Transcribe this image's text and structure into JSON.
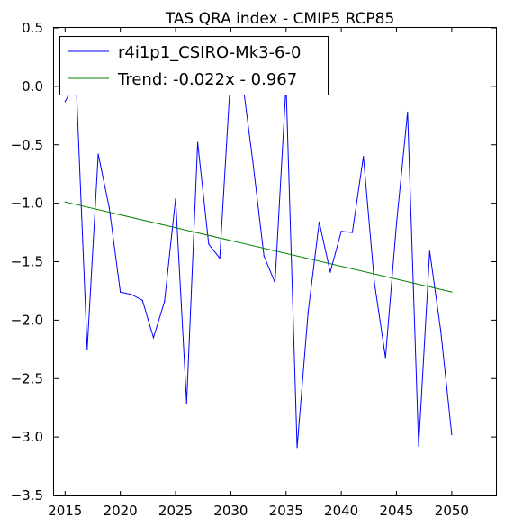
{
  "chart_data": {
    "type": "line",
    "title": "TAS QRA index - CMIP5 RCP85",
    "xlabel": "",
    "ylabel": "",
    "xlim": [
      2014,
      2054
    ],
    "ylim": [
      -3.5,
      0.5
    ],
    "xticks": [
      2015,
      2020,
      2025,
      2030,
      2035,
      2040,
      2045,
      2050
    ],
    "yticks": [
      0.5,
      0.0,
      -0.5,
      -1.0,
      -1.5,
      -2.0,
      -2.5,
      -3.0,
      -3.5
    ],
    "xtick_labels": [
      "2015",
      "2020",
      "2025",
      "2030",
      "2035",
      "2040",
      "2045",
      "2050"
    ],
    "ytick_labels": [
      "0.5",
      "0.0",
      "−0.5",
      "−1.0",
      "−1.5",
      "−2.0",
      "−2.5",
      "−3.0",
      "−3.5"
    ],
    "grid": false,
    "legend_position": "top-left",
    "series": [
      {
        "name": "r4i1p1_CSIRO-Mk3-6-0",
        "color": "#0000ff",
        "x": [
          2015,
          2016,
          2017,
          2018,
          2019,
          2020,
          2021,
          2022,
          2023,
          2024,
          2025,
          2026,
          2027,
          2028,
          2029,
          2030,
          2031,
          2032,
          2033,
          2034,
          2035,
          2036,
          2037,
          2038,
          2039,
          2040,
          2041,
          2042,
          2043,
          2044,
          2045,
          2046,
          2047,
          2048,
          2049,
          2050
        ],
        "y": [
          -0.13,
          0.04,
          -2.25,
          -0.58,
          -1.04,
          -1.76,
          -1.78,
          -1.83,
          -2.15,
          -1.84,
          -0.96,
          -2.71,
          -0.48,
          -1.35,
          -1.47,
          0.12,
          0.09,
          -0.65,
          -1.45,
          -1.68,
          0.02,
          -3.09,
          -1.93,
          -1.16,
          -1.59,
          -1.24,
          -1.25,
          -0.6,
          -1.68,
          -2.32,
          -1.17,
          -0.22,
          -3.08,
          -1.41,
          -2.09,
          -2.98
        ]
      },
      {
        "name": "Trend: -0.022x - 0.967",
        "color": "#008000",
        "x": [
          2015,
          2050
        ],
        "y": [
          -0.989,
          -1.759
        ]
      }
    ]
  }
}
